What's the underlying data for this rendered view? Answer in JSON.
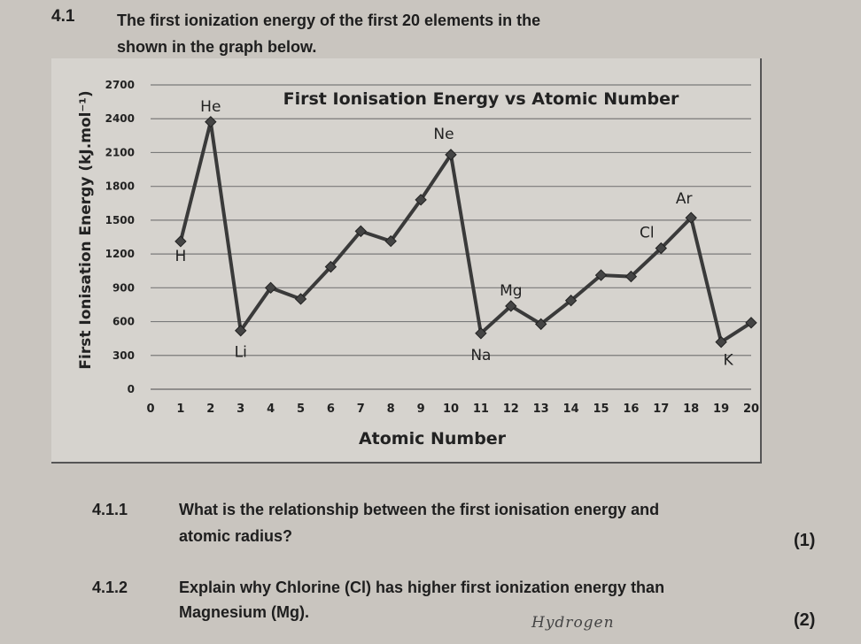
{
  "question": {
    "number": "4.1",
    "intro_line1": "The first ionization energy of the first 20 elements in the",
    "intro_line2": "shown in the graph below."
  },
  "chart_data": {
    "type": "line",
    "title": "First Ionisation Energy vs Atomic Number",
    "xlabel": "Atomic Number",
    "ylabel": "First Ionisation Energy (kJ.mol⁻¹)",
    "xlim": [
      0,
      20
    ],
    "ylim": [
      0,
      2700
    ],
    "xticks": [
      0,
      1,
      2,
      3,
      4,
      5,
      6,
      7,
      8,
      9,
      10,
      11,
      12,
      13,
      14,
      15,
      16,
      17,
      18,
      19,
      20
    ],
    "yticks": [
      0,
      300,
      600,
      900,
      1200,
      1500,
      1800,
      2100,
      2400,
      2700
    ],
    "grid": true,
    "x": [
      1,
      2,
      3,
      4,
      5,
      6,
      7,
      8,
      9,
      10,
      11,
      12,
      13,
      14,
      15,
      16,
      17,
      18,
      19,
      20
    ],
    "y": [
      1312,
      2372,
      520,
      900,
      801,
      1086,
      1402,
      1314,
      1681,
      2081,
      496,
      738,
      578,
      787,
      1012,
      1000,
      1251,
      1521,
      419,
      590
    ],
    "point_labels": [
      {
        "x": 1,
        "text": "H"
      },
      {
        "x": 2,
        "text": "He"
      },
      {
        "x": 3,
        "text": "Li"
      },
      {
        "x": 10,
        "text": "Ne"
      },
      {
        "x": 11,
        "text": "Na"
      },
      {
        "x": 12,
        "text": "Mg"
      },
      {
        "x": 17,
        "text": "Cl"
      },
      {
        "x": 18,
        "text": "Ar"
      },
      {
        "x": 19,
        "text": "K"
      }
    ],
    "line_color": "#3a3a3a"
  },
  "questions": [
    {
      "num": "4.1.1",
      "line1": "What is the relationship between the first ionisation energy and",
      "line2": "atomic radius?",
      "marks": "(1)"
    },
    {
      "num": "4.1.2",
      "line1": "Explain why Chlorine (Cl) has higher first ionization energy than",
      "line2": "Magnesium (Mg).",
      "marks": "(2)"
    }
  ],
  "handwriting": "Hydrogen"
}
